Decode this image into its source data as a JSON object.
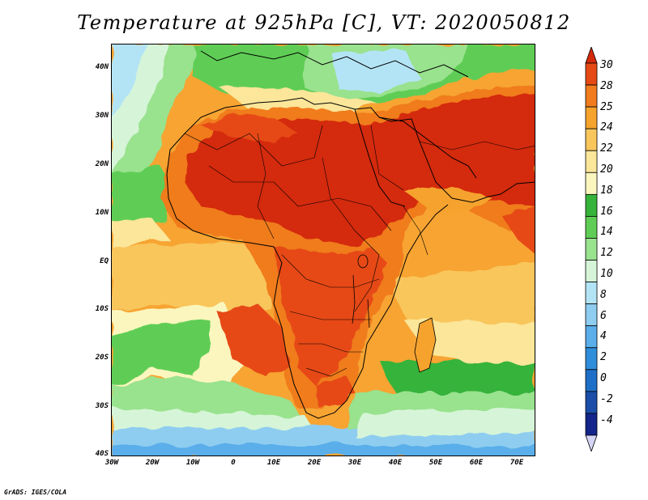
{
  "title": "Temperature at 925hPa [C], VT: 2020050812",
  "footer": "GrADS: IGES/COLA",
  "map": {
    "lon_range": [
      -30,
      75
    ],
    "lat_range": [
      -40,
      45
    ],
    "lat_ticks": [
      {
        "value": 40,
        "label": "40N"
      },
      {
        "value": 30,
        "label": "30N"
      },
      {
        "value": 20,
        "label": "20N"
      },
      {
        "value": 10,
        "label": "10N"
      },
      {
        "value": 0,
        "label": "EQ"
      },
      {
        "value": -10,
        "label": "10S"
      },
      {
        "value": -20,
        "label": "20S"
      },
      {
        "value": -30,
        "label": "30S"
      },
      {
        "value": -40,
        "label": "40S"
      }
    ],
    "lon_ticks": [
      {
        "value": -30,
        "label": "30W"
      },
      {
        "value": -20,
        "label": "20W"
      },
      {
        "value": -10,
        "label": "10W"
      },
      {
        "value": 0,
        "label": "0"
      },
      {
        "value": 10,
        "label": "10E"
      },
      {
        "value": 20,
        "label": "20E"
      },
      {
        "value": 30,
        "label": "30E"
      },
      {
        "value": 40,
        "label": "40E"
      },
      {
        "value": 50,
        "label": "50E"
      },
      {
        "value": 60,
        "label": "60E"
      },
      {
        "value": 70,
        "label": "70E"
      }
    ]
  },
  "colorbar": {
    "labels": [
      "30",
      "28",
      "25",
      "24",
      "22",
      "20",
      "18",
      "16",
      "14",
      "12",
      "10",
      "8",
      "6",
      "4",
      "2",
      "0",
      "-2",
      "-4"
    ],
    "colors": [
      "#d42a0a",
      "#e64a14",
      "#f07c1e",
      "#f5a32d",
      "#f9c65c",
      "#fbe699",
      "#fbf6be",
      "#36b33a",
      "#5fcd55",
      "#99e28e",
      "#d6f5d8",
      "#b3e4f5",
      "#8ecdf0",
      "#5aaeea",
      "#2f8edb",
      "#1e6fc8",
      "#1a4ea8",
      "#13258a",
      "#d4d4f4"
    ],
    "color_order": "top to bottom"
  }
}
